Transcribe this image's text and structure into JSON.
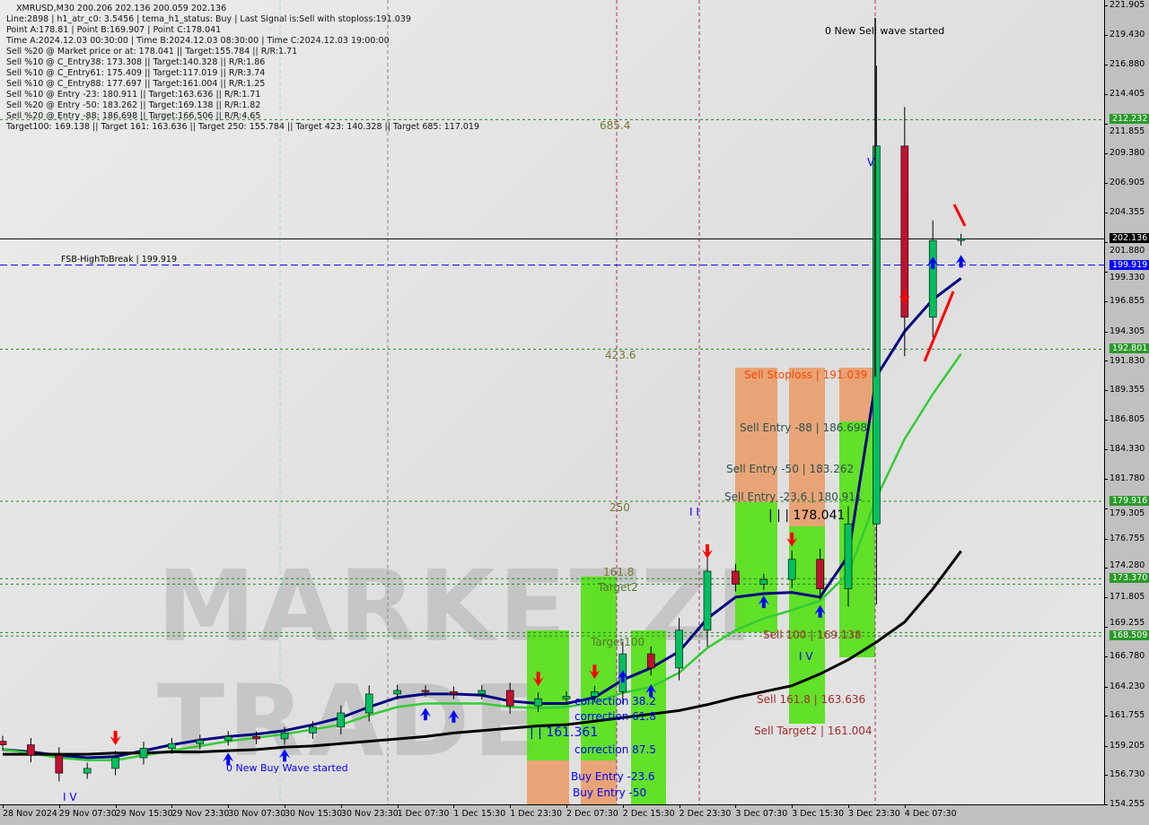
{
  "header": {
    "symbol_line": "XMRUSD,M30  200.206 202.136 200.059 202.136",
    "lines": [
      "Line:2898 | h1_atr_c0: 3.5456 | tema_h1_status: Buy | Last Signal is:Sell with stoploss:191.039",
      "Point A:178.81 | Point B:169.907 | Point C:178.041",
      "Time A:2024.12.03 00:30:00 | Time B:2024.12.03 08:30:00 | Time C:2024.12.03 19:00:00",
      "Sell %20 @ Market price or at: 178.041 || Target:155.784 || R/R:1.71",
      "Sell %10 @ C_Entry38: 173.308 || Target:140.328 || R/R:1.86",
      "Sell %10 @ C_Entry61: 175.409 || Target:117.019 || R/R:3.74",
      "Sell %10 @ C_Entry88: 177.697 || Target:161.004 || R/R:1.25",
      "Sell %10 @ Entry -23: 180.911 || Target:163.636 || R/R:1.71",
      "Sell %20 @ Entry -50: 183.262 || Target:169.138 || R/R:1.82",
      "Sell %20 @ Entry -88: 186.698 || Target:166.506 || R/R:4.65",
      "Target100: 169.138 || Target 161: 163.636 || Target 250: 155.784 || Target 423: 140.328 || Target 685: 117.019"
    ]
  },
  "annotations": {
    "new_sell_wave": "0 New Sell wave started",
    "new_buy_wave": "0 New Buy Wave started",
    "fib_685": "685.4",
    "fib_423": "423.6",
    "fib_250": "250",
    "fib_161": "161.8",
    "target2": "Target2",
    "target100": "Target100",
    "fsb": "FSB-HighToBreak | 199.919",
    "sell_stoploss": "Sell Stoploss | 191.039",
    "sell_entry_88": "Sell Entry -88 | 186.698",
    "sell_entry_50": "Sell Entry -50 | 183.262",
    "sell_entry_236": "Sell Entry -23.6 | 180.911",
    "point_c": "| | | 178.041",
    "sell_100": "Sell 100 | 169.138",
    "sell_1618": "Sell 161.8 | 163.636",
    "sell_target2": "Sell Target2 | 161.004",
    "buy_level": "| | 161.361",
    "corr_382": "correction 38.2",
    "corr_618": "correction 61.8",
    "corr_875": "correction 87.5",
    "buy_entry_236": "Buy Entry -23.6",
    "buy_entry_50": "Buy Entry -50",
    "wave_iv_1": "I V",
    "wave_iv_2": "I V",
    "wave_v": "V",
    "wave_ii": "I  I",
    "watermark": "MARKETZI TRADE"
  },
  "chart_data": {
    "type": "candlestick",
    "title": "XMRUSD,M30",
    "x": [
      "11-28 23:30",
      "11-29 03:30",
      "11-29 07:30",
      "11-29 11:30",
      "11-29 15:30",
      "11-29 19:30",
      "11-29 23:30",
      "11-30 03:30",
      "11-30 07:30",
      "11-30 11:30",
      "11-30 15:30",
      "11-30 19:30",
      "11-30 23:30",
      "12-01 03:30",
      "12-01 07:30",
      "12-01 11:30",
      "12-01 15:30",
      "12-01 19:30",
      "12-01 23:30",
      "12-02 03:30",
      "12-02 07:30",
      "12-02 11:30",
      "12-02 15:30",
      "12-02 19:30",
      "12-02 23:30",
      "12-03 03:30",
      "12-03 07:30",
      "12-03 11:30",
      "12-03 15:30",
      "12-03 19:30",
      "12-03 23:30",
      "12-04 03:30",
      "12-04 07:30",
      "12-04 11:30",
      "12-04 15:30"
    ],
    "close": [
      159.3,
      158.4,
      156.9,
      157.3,
      158.2,
      159.0,
      159.4,
      159.7,
      160.0,
      159.8,
      160.3,
      160.8,
      162.0,
      163.6,
      163.9,
      163.8,
      163.6,
      163.9,
      162.6,
      163.2,
      163.4,
      163.8,
      167.0,
      165.8,
      169.0,
      174.0,
      172.9,
      173.3,
      175.0,
      172.5,
      178.0,
      210.0,
      195.5,
      202.0,
      202.136
    ],
    "series": [
      {
        "color": "#000080",
        "values": [
          158.9,
          158.7,
          158.4,
          158.2,
          158.3,
          158.8,
          159.3,
          159.7,
          160.0,
          160.2,
          160.5,
          161.0,
          161.6,
          162.5,
          163.3,
          163.6,
          163.6,
          163.5,
          163.0,
          162.8,
          162.8,
          163.3,
          164.8,
          165.8,
          167.2,
          170.0,
          171.8,
          172.1,
          172.2,
          171.8,
          175.3,
          190.5,
          194.3,
          197.0,
          198.8
        ]
      },
      {
        "color": "#33cc33",
        "values": [
          158.9,
          158.6,
          158.2,
          158.0,
          158.0,
          158.4,
          158.8,
          159.2,
          159.6,
          159.9,
          160.2,
          160.6,
          161.0,
          161.8,
          162.5,
          162.8,
          162.8,
          162.8,
          162.5,
          162.4,
          162.5,
          162.9,
          163.7,
          164.2,
          165.4,
          167.5,
          169.0,
          170.0,
          170.7,
          171.5,
          173.8,
          180.2,
          185.2,
          189.0,
          192.4
        ]
      },
      {
        "color": "#000000",
        "values": [
          158.5,
          158.5,
          158.5,
          158.5,
          158.6,
          158.6,
          158.7,
          158.7,
          158.8,
          158.9,
          159.1,
          159.2,
          159.4,
          159.6,
          159.8,
          160.0,
          160.3,
          160.5,
          160.7,
          160.9,
          161.0,
          161.3,
          161.6,
          161.9,
          162.2,
          162.7,
          163.3,
          163.8,
          164.3,
          165.3,
          166.5,
          168.0,
          169.7,
          172.5,
          175.7
        ]
      }
    ],
    "signals": [
      {
        "i": 4,
        "type": "sell"
      },
      {
        "i": 8,
        "type": "buy"
      },
      {
        "i": 10,
        "type": "buy"
      },
      {
        "i": 15,
        "type": "buy"
      },
      {
        "i": 16,
        "type": "buy"
      },
      {
        "i": 19,
        "type": "sell"
      },
      {
        "i": 21,
        "type": "sell"
      },
      {
        "i": 22,
        "type": "buy"
      },
      {
        "i": 23,
        "type": "buy"
      },
      {
        "i": 25,
        "type": "sell"
      },
      {
        "i": 27,
        "type": "buy"
      },
      {
        "i": 28,
        "type": "sell"
      },
      {
        "i": 29,
        "type": "buy"
      },
      {
        "i": 32,
        "type": "sell"
      },
      {
        "i": 33,
        "type": "buy"
      },
      {
        "i": 34,
        "type": "buy"
      }
    ],
    "levels": [
      {
        "value": 212.232,
        "color": "#228b22",
        "style": "dashed",
        "label": "212.232"
      },
      {
        "value": 202.136,
        "color": "#000000",
        "style": "solid",
        "label": "202.136"
      },
      {
        "value": 199.919,
        "color": "#0000ff",
        "style": "dashed",
        "label": "199.919"
      },
      {
        "value": 192.801,
        "color": "#228b22",
        "style": "dashed",
        "label": "192.801"
      },
      {
        "value": 179.916,
        "color": "#228b22",
        "style": "dashed",
        "label": "179.916"
      },
      {
        "value": 173.37,
        "color": "#228b22",
        "style": "dashed",
        "label": "173.370"
      },
      {
        "value": 172.9,
        "color": "#228b22",
        "style": "dashed",
        "label": ""
      },
      {
        "value": 168.8,
        "color": "#228b22",
        "style": "dashed",
        "label": ""
      },
      {
        "value": 168.509,
        "color": "#228b22",
        "style": "dashed",
        "label": "168.509"
      }
    ],
    "y_ticks": [
      "221.905",
      "219.430",
      "216.880",
      "214.405",
      "211.855",
      "209.380",
      "206.905",
      "204.355",
      "201.880",
      "199.330",
      "196.855",
      "194.305",
      "191.830",
      "189.355",
      "186.805",
      "184.330",
      "181.780",
      "179.305",
      "176.755",
      "174.280",
      "171.805",
      "169.255",
      "166.780",
      "164.230",
      "161.755",
      "159.205",
      "156.730",
      "154.255"
    ],
    "x_ticks": [
      "28 Nov 2024",
      "29 Nov 07:30",
      "29 Nov 15:30",
      "29 Nov 23:30",
      "30 Nov 07:30",
      "30 Nov 15:30",
      "30 Nov 23:30",
      "1 Dec 07:30",
      "1 Dec 15:30",
      "1 Dec 23:30",
      "2 Dec 07:30",
      "2 Dec 15:30",
      "2 Dec 23:30",
      "3 Dec 07:30",
      "3 Dec 15:30",
      "3 Dec 23:30",
      "4 Dec 07:30"
    ],
    "ylim": [
      154.255,
      221.905
    ],
    "grid": false,
    "colors": {
      "up": "#00c060",
      "down": "#c01030",
      "zone_green": "#5ae01e",
      "zone_orange": "#e8a070"
    }
  }
}
